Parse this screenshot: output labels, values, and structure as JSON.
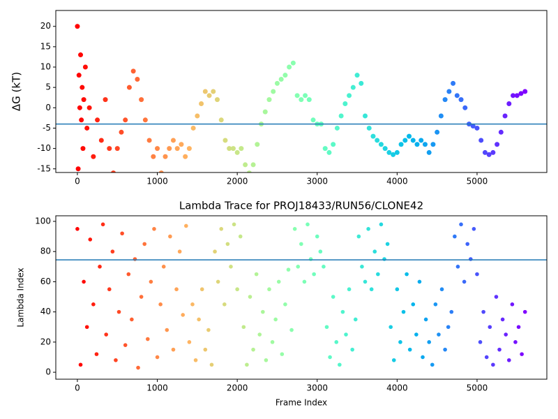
{
  "chart_data": [
    {
      "type": "scatter",
      "ylabel": "ΔG (kT)",
      "colormap": "rainbow_r",
      "hline": -4,
      "hline_color": "#1f77b4",
      "xlim": [
        -270,
        5873
      ],
      "ylim": [
        -15.9,
        23.9
      ],
      "xticks": [
        0,
        1000,
        2000,
        3000,
        4000,
        5000
      ],
      "yticks": [
        -15,
        -10,
        -5,
        0,
        5,
        10,
        15,
        20
      ],
      "x": [
        0,
        10,
        20,
        30,
        40,
        50,
        60,
        70,
        80,
        100,
        120,
        150,
        200,
        250,
        300,
        350,
        400,
        450,
        500,
        550,
        600,
        650,
        700,
        750,
        800,
        850,
        900,
        950,
        1000,
        1050,
        1100,
        1150,
        1200,
        1250,
        1300,
        1350,
        1400,
        1450,
        1500,
        1550,
        1600,
        1650,
        1700,
        1750,
        1800,
        1850,
        1900,
        1950,
        2000,
        2050,
        2100,
        2150,
        2200,
        2250,
        2300,
        2350,
        2400,
        2450,
        2500,
        2550,
        2600,
        2650,
        2700,
        2750,
        2800,
        2850,
        2900,
        2950,
        3000,
        3050,
        3100,
        3150,
        3200,
        3250,
        3300,
        3350,
        3400,
        3450,
        3500,
        3550,
        3600,
        3650,
        3700,
        3750,
        3800,
        3850,
        3900,
        3950,
        4000,
        4050,
        4100,
        4150,
        4200,
        4250,
        4300,
        4350,
        4400,
        4450,
        4500,
        4550,
        4600,
        4650,
        4700,
        4750,
        4800,
        4850,
        4900,
        4950,
        5000,
        5050,
        5100,
        5150,
        5200,
        5250,
        5300,
        5350,
        5400,
        5450,
        5500,
        5550,
        5600
      ],
      "values": [
        20,
        -15,
        8,
        0,
        13,
        -3,
        5,
        -10,
        2,
        10,
        -5,
        0,
        -12,
        -3,
        -8,
        2,
        -10,
        -16,
        -10,
        -6,
        -3,
        5,
        9,
        7,
        2,
        -3,
        -8,
        -12,
        -10,
        -16,
        -12,
        -10,
        -8,
        -10,
        -9,
        -12,
        -10,
        -5,
        -2,
        1,
        4,
        3,
        4,
        2,
        -3,
        -8,
        -10,
        -10,
        -11,
        -10,
        -14,
        -16,
        -14,
        -9,
        -4,
        -1,
        2,
        4,
        6,
        7,
        8,
        10,
        11,
        3,
        2,
        3,
        2,
        -3,
        -4,
        -4,
        -10,
        -11,
        -9,
        -5,
        -2,
        1,
        3,
        5,
        8,
        6,
        -2,
        -5,
        -7,
        -8,
        -9,
        -10,
        -11,
        -11.5,
        -11,
        -9,
        -8,
        -7,
        -8,
        -9,
        -8,
        -9,
        -11,
        -9,
        -6,
        -2,
        2,
        4,
        6,
        3,
        2,
        0,
        -4,
        -4.5,
        -5,
        -8,
        -11,
        -11.5,
        -11,
        -9,
        -6,
        -2,
        1,
        3,
        3,
        3.5,
        4
      ]
    },
    {
      "type": "scatter",
      "title": "Lambda Trace for PROJ18433/RUN56/CLONE42",
      "xlabel": "Frame Index",
      "ylabel": "Lambda Index",
      "colormap": "rainbow_r",
      "hline": 74.5,
      "hline_color": "#1f77b4",
      "xlim": [
        -270,
        5873
      ],
      "ylim": [
        -4.6,
        103.7
      ],
      "xticks": [
        0,
        1000,
        2000,
        3000,
        4000,
        5000
      ],
      "yticks": [
        0,
        20,
        40,
        60,
        80,
        100
      ],
      "x": [
        0,
        40,
        80,
        120,
        160,
        200,
        240,
        280,
        320,
        360,
        400,
        440,
        480,
        520,
        560,
        600,
        640,
        680,
        720,
        760,
        800,
        840,
        880,
        920,
        960,
        1000,
        1040,
        1080,
        1120,
        1160,
        1200,
        1240,
        1280,
        1320,
        1360,
        1400,
        1440,
        1480,
        1520,
        1560,
        1600,
        1640,
        1680,
        1720,
        1760,
        1800,
        1840,
        1880,
        1920,
        1960,
        2000,
        2040,
        2080,
        2120,
        2160,
        2200,
        2240,
        2280,
        2320,
        2360,
        2400,
        2440,
        2480,
        2520,
        2560,
        2600,
        2640,
        2680,
        2720,
        2760,
        2800,
        2840,
        2880,
        2920,
        2960,
        3000,
        3040,
        3080,
        3120,
        3160,
        3200,
        3240,
        3280,
        3320,
        3360,
        3400,
        3440,
        3480,
        3520,
        3560,
        3600,
        3640,
        3680,
        3720,
        3760,
        3800,
        3840,
        3880,
        3920,
        3960,
        4000,
        4040,
        4080,
        4120,
        4160,
        4200,
        4240,
        4280,
        4320,
        4360,
        4400,
        4440,
        4480,
        4520,
        4560,
        4600,
        4640,
        4680,
        4720,
        4760,
        4800,
        4840,
        4880,
        4920,
        4960,
        5000,
        5040,
        5080,
        5120,
        5160,
        5200,
        5240,
        5280,
        5320,
        5360,
        5400,
        5440,
        5480,
        5520,
        5560,
        5600
      ],
      "values": [
        95,
        5,
        60,
        30,
        88,
        45,
        12,
        70,
        98,
        25,
        55,
        80,
        8,
        40,
        92,
        18,
        65,
        35,
        75,
        3,
        50,
        85,
        22,
        60,
        95,
        10,
        45,
        70,
        28,
        90,
        15,
        55,
        80,
        38,
        97,
        20,
        45,
        8,
        35,
        55,
        15,
        28,
        5,
        80,
        60,
        95,
        45,
        85,
        70,
        98,
        55,
        90,
        30,
        5,
        50,
        15,
        65,
        25,
        40,
        8,
        55,
        20,
        35,
        60,
        12,
        45,
        68,
        28,
        95,
        70,
        85,
        60,
        98,
        75,
        65,
        90,
        80,
        70,
        30,
        10,
        50,
        20,
        5,
        40,
        25,
        55,
        15,
        35,
        90,
        70,
        60,
        95,
        55,
        80,
        65,
        98,
        75,
        85,
        30,
        8,
        55,
        20,
        40,
        65,
        15,
        45,
        25,
        60,
        10,
        35,
        20,
        5,
        45,
        25,
        55,
        15,
        30,
        40,
        90,
        70,
        98,
        60,
        85,
        75,
        95,
        65,
        20,
        40,
        10,
        30,
        5,
        50,
        15,
        35,
        25,
        8,
        45,
        20,
        30,
        12,
        40
      ]
    }
  ]
}
